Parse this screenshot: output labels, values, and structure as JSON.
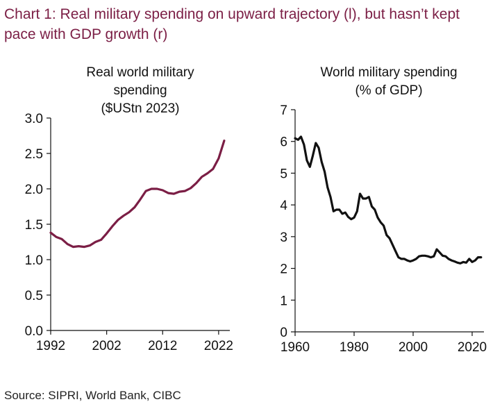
{
  "title": "Chart 1: Real military spending on upward trajectory (l), but hasn’t kept pace with GDP growth (r)",
  "source": "Source: SIPRI, World Bank, CIBC",
  "colors": {
    "left_series": "#7b1e45",
    "right_series": "#111111",
    "axis": "#111111",
    "title": "#7b1e45"
  },
  "chart_data": [
    {
      "type": "line",
      "title": [
        "Real world military",
        "spending",
        "($UStn 2023)"
      ],
      "xlabel": "",
      "ylabel": "",
      "xlim": [
        1992,
        2024
      ],
      "ylim": [
        0,
        3
      ],
      "xticks": [
        1992,
        2002,
        2012,
        2022
      ],
      "xtick_labels": [
        "1992",
        "2002",
        "2012",
        "2022"
      ],
      "yticks": [
        0,
        0.5,
        1,
        1.5,
        2,
        2.5,
        3
      ],
      "ytick_labels": [
        "0.0",
        "0.5",
        "1.0",
        "1.5",
        "2.0",
        "2.5",
        "3.0"
      ],
      "grid": false,
      "series": [
        {
          "name": "Real world military spending ($UStn 2023)",
          "color": "#7b1e45",
          "x": [
            1992,
            1993,
            1994,
            1995,
            1996,
            1997,
            1998,
            1999,
            2000,
            2001,
            2002,
            2003,
            2004,
            2005,
            2006,
            2007,
            2008,
            2009,
            2010,
            2011,
            2012,
            2013,
            2014,
            2015,
            2016,
            2017,
            2018,
            2019,
            2020,
            2021,
            2022,
            2023
          ],
          "y": [
            1.38,
            1.32,
            1.29,
            1.22,
            1.18,
            1.19,
            1.18,
            1.2,
            1.25,
            1.28,
            1.37,
            1.47,
            1.56,
            1.62,
            1.67,
            1.74,
            1.85,
            1.97,
            2.0,
            2.0,
            1.98,
            1.94,
            1.93,
            1.96,
            1.97,
            2.01,
            2.08,
            2.17,
            2.22,
            2.28,
            2.43,
            2.68
          ]
        }
      ]
    },
    {
      "type": "line",
      "title": [
        "World military spending",
        "(% of GDP)"
      ],
      "xlabel": "",
      "ylabel": "",
      "xlim": [
        1960,
        2024
      ],
      "ylim": [
        0,
        7
      ],
      "xticks": [
        1960,
        1980,
        2000,
        2020
      ],
      "xtick_labels": [
        "1960",
        "1980",
        "2000",
        "2020"
      ],
      "yticks": [
        0,
        1,
        2,
        3,
        4,
        5,
        6,
        7
      ],
      "ytick_labels": [
        "0",
        "1",
        "2",
        "3",
        "4",
        "5",
        "6",
        "7"
      ],
      "grid": false,
      "series": [
        {
          "name": "World military spending (% of GDP)",
          "color": "#111111",
          "x": [
            1960,
            1961,
            1962,
            1963,
            1964,
            1965,
            1966,
            1967,
            1968,
            1969,
            1970,
            1971,
            1972,
            1973,
            1974,
            1975,
            1976,
            1977,
            1978,
            1979,
            1980,
            1981,
            1982,
            1983,
            1984,
            1985,
            1986,
            1987,
            1988,
            1989,
            1990,
            1991,
            1992,
            1993,
            1994,
            1995,
            1996,
            1997,
            1998,
            1999,
            2000,
            2001,
            2002,
            2003,
            2004,
            2005,
            2006,
            2007,
            2008,
            2009,
            2010,
            2011,
            2012,
            2013,
            2014,
            2015,
            2016,
            2017,
            2018,
            2019,
            2020,
            2021,
            2022,
            2023
          ],
          "y": [
            6.1,
            6.05,
            6.15,
            5.9,
            5.4,
            5.2,
            5.55,
            5.95,
            5.8,
            5.35,
            5.05,
            4.55,
            4.25,
            3.8,
            3.85,
            3.85,
            3.72,
            3.76,
            3.62,
            3.55,
            3.6,
            3.8,
            4.35,
            4.2,
            4.2,
            4.25,
            3.95,
            3.85,
            3.6,
            3.45,
            3.35,
            3.05,
            2.95,
            2.75,
            2.55,
            2.35,
            2.3,
            2.3,
            2.25,
            2.22,
            2.25,
            2.3,
            2.38,
            2.4,
            2.4,
            2.38,
            2.35,
            2.38,
            2.6,
            2.5,
            2.4,
            2.38,
            2.3,
            2.25,
            2.22,
            2.18,
            2.16,
            2.2,
            2.18,
            2.3,
            2.2,
            2.25,
            2.35,
            2.35
          ]
        }
      ]
    }
  ]
}
